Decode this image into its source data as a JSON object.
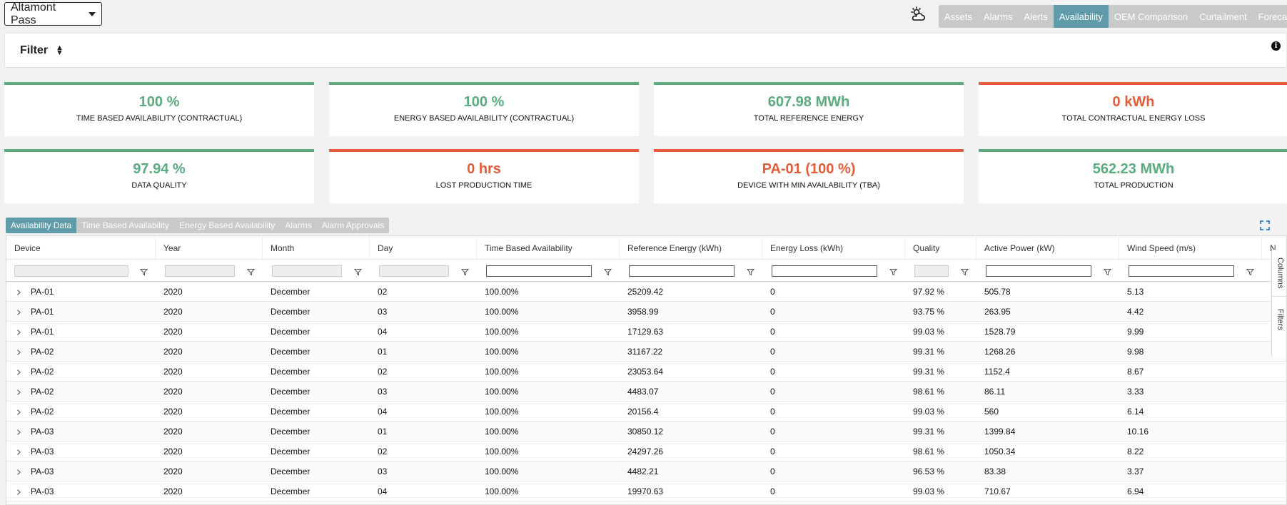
{
  "site": {
    "selected": "Altamont Pass"
  },
  "nav": {
    "items": [
      {
        "label": "Assets",
        "active": false
      },
      {
        "label": "Alarms",
        "active": false
      },
      {
        "label": "Alerts",
        "active": false
      },
      {
        "label": "Availability",
        "active": true
      },
      {
        "label": "OEM Comparison",
        "active": false
      },
      {
        "label": "Curtailment",
        "active": false
      },
      {
        "label": "Forecast",
        "active": false
      }
    ]
  },
  "filter": {
    "label": "Filter",
    "info_icon": "i"
  },
  "kpis": [
    {
      "value": "100 %",
      "label": "TIME BASED AVAILABILITY (CONTRACTUAL)",
      "status": "good"
    },
    {
      "value": "100 %",
      "label": "ENERGY BASED AVAILABILITY (CONTRACTUAL)",
      "status": "good"
    },
    {
      "value": "607.98 MWh",
      "label": "TOTAL REFERENCE ENERGY",
      "status": "good"
    },
    {
      "value": "0 kWh",
      "label": "TOTAL CONTRACTUAL ENERGY LOSS",
      "status": "bad"
    },
    {
      "value": "97.94 %",
      "label": "DATA QUALITY",
      "status": "good"
    },
    {
      "value": "0 hrs",
      "label": "LOST PRODUCTION TIME",
      "status": "bad"
    },
    {
      "value": "PA-01 (100 %)",
      "label": "DEVICE WITH MIN AVAILABILITY (TBA)",
      "status": "bad"
    },
    {
      "value": "562.23 MWh",
      "label": "TOTAL PRODUCTION",
      "status": "good"
    }
  ],
  "colors": {
    "good": "#5aab7f",
    "bad": "#e65c3a",
    "accent": "#5f9ba8"
  },
  "sub_tabs": [
    {
      "label": "Availability Data",
      "active": true
    },
    {
      "label": "Time Based Availability",
      "active": false
    },
    {
      "label": "Energy Based Availability",
      "active": false
    },
    {
      "label": "Alarms",
      "active": false
    },
    {
      "label": "Alarm Approvals",
      "active": false
    }
  ],
  "table": {
    "columns": [
      "Device",
      "Year",
      "Month",
      "Day",
      "Time Based Availability",
      "Reference Energy (kWh)",
      "Energy Loss (kWh)",
      "Quality",
      "Active Power (kW)",
      "Wind Speed (m/s)",
      "N"
    ],
    "filter_inputs_active": [
      false,
      false,
      false,
      false,
      true,
      true,
      true,
      false,
      true,
      true
    ],
    "rows": [
      [
        "PA-01",
        "2020",
        "December",
        "02",
        "100.00%",
        "25209.42",
        "0",
        "97.92 %",
        "505.78",
        "5.13"
      ],
      [
        "PA-01",
        "2020",
        "December",
        "03",
        "100.00%",
        "3958.99",
        "0",
        "93.75 %",
        "263.95",
        "4.42"
      ],
      [
        "PA-01",
        "2020",
        "December",
        "04",
        "100.00%",
        "17129.63",
        "0",
        "99.03 %",
        "1528.79",
        "9.99"
      ],
      [
        "PA-02",
        "2020",
        "December",
        "01",
        "100.00%",
        "31167.22",
        "0",
        "99.31 %",
        "1268.26",
        "9.98"
      ],
      [
        "PA-02",
        "2020",
        "December",
        "02",
        "100.00%",
        "23053.64",
        "0",
        "99.31 %",
        "1152.4",
        "8.67"
      ],
      [
        "PA-02",
        "2020",
        "December",
        "03",
        "100.00%",
        "4483.07",
        "0",
        "98.61 %",
        "86.11",
        "3.33"
      ],
      [
        "PA-02",
        "2020",
        "December",
        "04",
        "100.00%",
        "20156.4",
        "0",
        "99.03 %",
        "560",
        "6.14"
      ],
      [
        "PA-03",
        "2020",
        "December",
        "01",
        "100.00%",
        "30850.12",
        "0",
        "99.31 %",
        "1399.84",
        "10.16"
      ],
      [
        "PA-03",
        "2020",
        "December",
        "02",
        "100.00%",
        "24297.26",
        "0",
        "98.61 %",
        "1050.34",
        "8.22"
      ],
      [
        "PA-03",
        "2020",
        "December",
        "03",
        "100.00%",
        "4482.21",
        "0",
        "96.53 %",
        "83.38",
        "3.37"
      ],
      [
        "PA-03",
        "2020",
        "December",
        "04",
        "100.00%",
        "19970.63",
        "0",
        "99.03 %",
        "710.67",
        "6.94"
      ]
    ]
  },
  "side_panel": {
    "columns_label": "Columns",
    "filters_label": "Filters"
  }
}
